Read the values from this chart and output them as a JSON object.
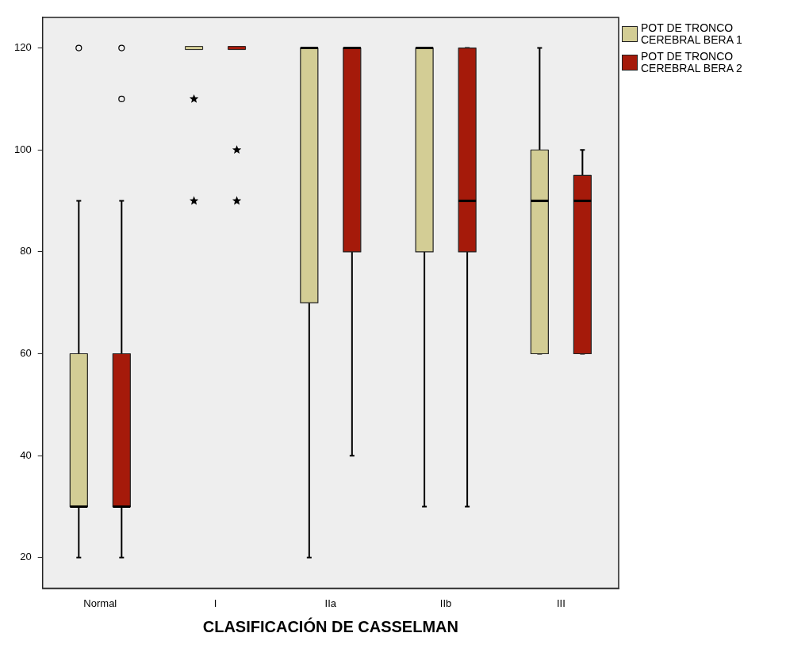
{
  "chart_data": {
    "type": "box",
    "xlabel": "CLASIFICACIÓN DE CASSELMAN",
    "categories": [
      "Normal",
      "I",
      "IIa",
      "IIb",
      "III"
    ],
    "ylim": [
      14,
      126
    ],
    "yticks": [
      20,
      40,
      60,
      80,
      100,
      120
    ],
    "legend": "top right",
    "grid": false,
    "series": [
      {
        "name": "POT DE TRONCO CEREBRAL BERA 1",
        "color": "#d3cd95",
        "boxes": [
          {
            "low": 20,
            "q1": 30,
            "median": 30,
            "q3": 60,
            "high": 90,
            "outliers": [
              120
            ]
          },
          {
            "low": 120,
            "q1": 120,
            "median": 120,
            "q3": 120,
            "high": 120,
            "outliers": [
              110,
              90
            ]
          },
          {
            "low": 20,
            "q1": 70,
            "median": 120,
            "q3": 120,
            "high": 120
          },
          {
            "low": 30,
            "q1": 80,
            "median": 120,
            "q3": 120,
            "high": 120
          },
          {
            "low": 60,
            "q1": 60,
            "median": 90,
            "q3": 100,
            "high": 120
          }
        ]
      },
      {
        "name": "POT DE TRONCO CEREBRAL BERA 2",
        "color": "#a51a0a",
        "boxes": [
          {
            "low": 20,
            "q1": 30,
            "median": 30,
            "q3": 60,
            "high": 90,
            "outliers": [
              110,
              120
            ]
          },
          {
            "low": 120,
            "q1": 120,
            "median": 120,
            "q3": 120,
            "high": 120,
            "outliers": [
              100,
              90
            ]
          },
          {
            "low": 40,
            "q1": 80,
            "median": 120,
            "q3": 120,
            "high": 120
          },
          {
            "low": 30,
            "q1": 80,
            "median": 90,
            "q3": 120,
            "high": 120
          },
          {
            "low": 60,
            "q1": 60,
            "median": 90,
            "q3": 95,
            "high": 100
          }
        ]
      }
    ]
  }
}
